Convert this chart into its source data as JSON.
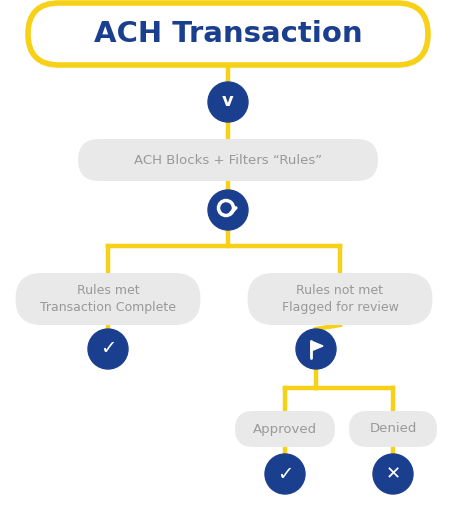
{
  "bg_color": "#ffffff",
  "title_text": "ACH Transaction",
  "title_box_color": "#ffffff",
  "title_box_edge_color": "#f7d117",
  "title_text_color": "#1b3f8f",
  "node_fill": "#e9e9e9",
  "node_text_color": "#999999",
  "circle_color": "#1b3f8f",
  "icon_color": "#ffffff",
  "line_color": "#f7d117",
  "rules_text": "ACH Blocks + Filters “Rules”",
  "left_node_text": "Rules met\nTransaction Complete",
  "right_node_text": "Rules not met\nFlagged for review",
  "approved_text": "Approved",
  "denied_text": "Denied"
}
